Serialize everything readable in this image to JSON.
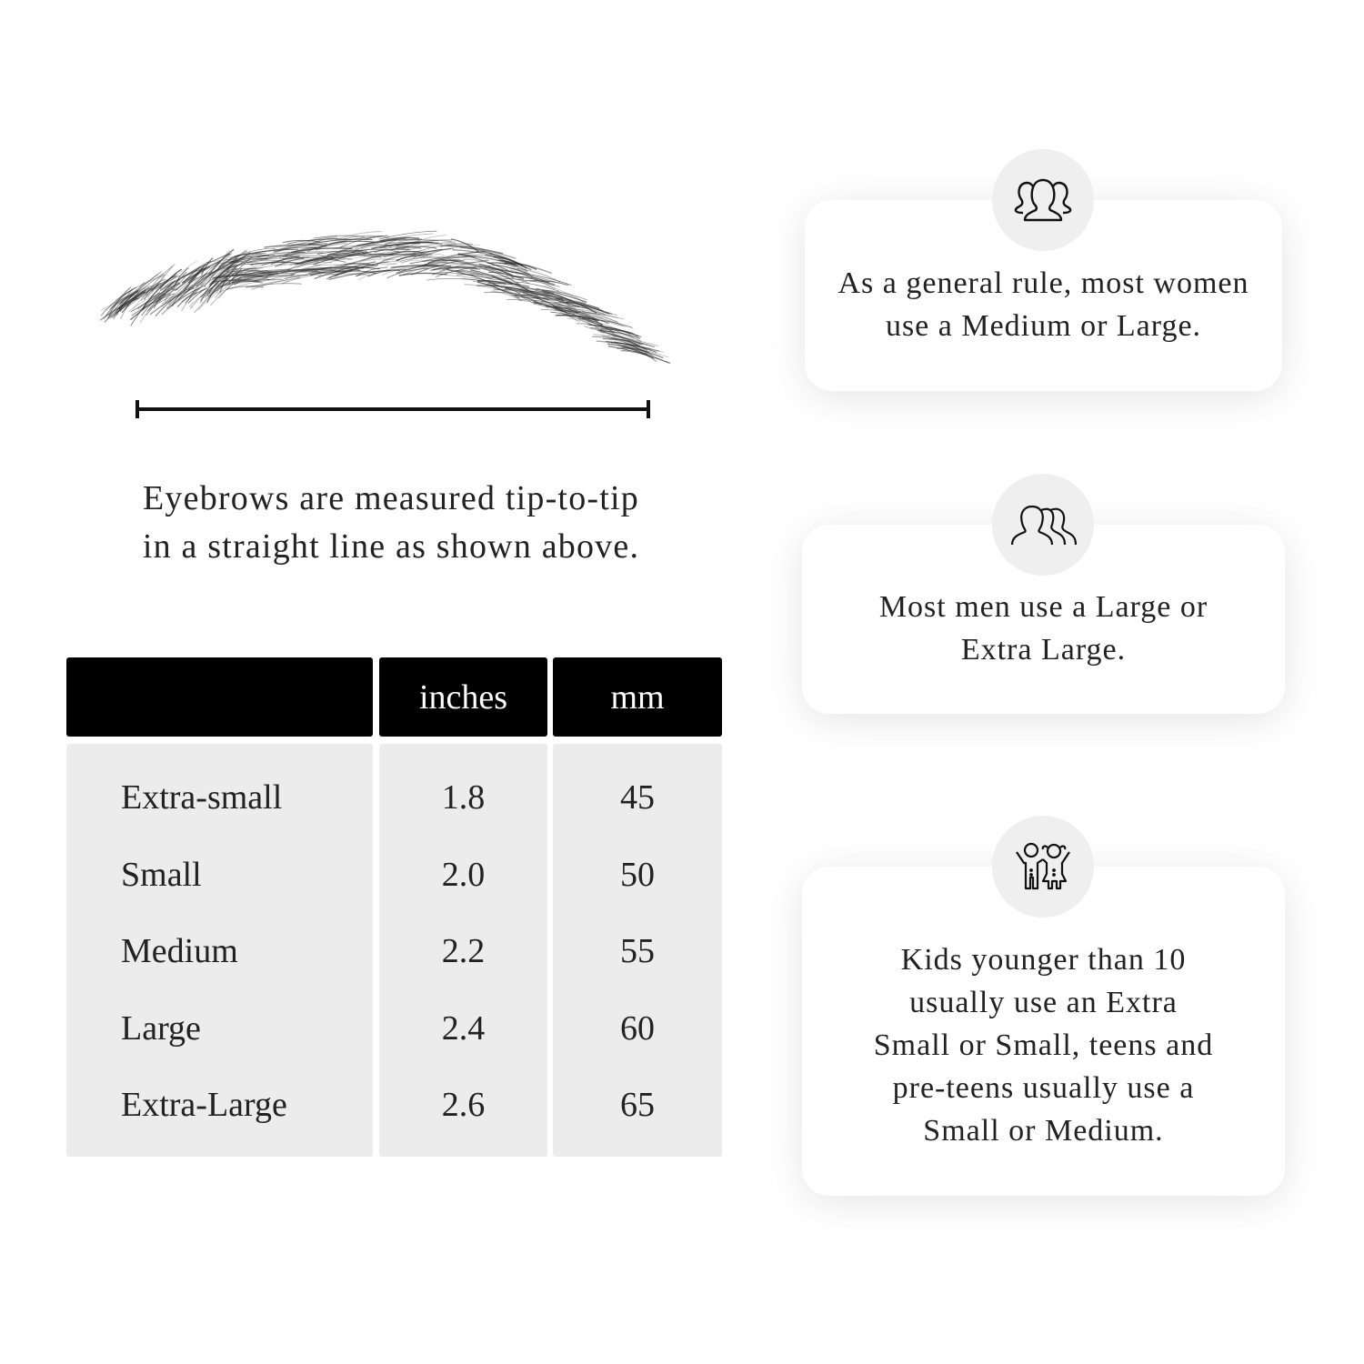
{
  "measurement": {
    "caption_line1": "Eyebrows are measured tip-to-tip",
    "caption_line2": "in a straight line as shown above."
  },
  "size_table": {
    "headers": [
      "",
      "inches",
      "mm"
    ],
    "rows": [
      {
        "size": "Extra-small",
        "inches": "1.8",
        "mm": "45"
      },
      {
        "size": "Small",
        "inches": "2.0",
        "mm": "50"
      },
      {
        "size": "Medium",
        "inches": "2.2",
        "mm": "55"
      },
      {
        "size": "Large",
        "inches": "2.4",
        "mm": "60"
      },
      {
        "size": "Extra-Large",
        "inches": "2.6",
        "mm": "65"
      }
    ]
  },
  "cards": [
    {
      "icon": "women-group-icon",
      "line1": "As a general rule, most women",
      "line2": "use a Medium or Large."
    },
    {
      "icon": "men-group-icon",
      "line1": "Most men use a Large or",
      "line2": "Extra Large."
    },
    {
      "icon": "kids-icon",
      "line1": "Kids younger than 10",
      "line2": "usually use an Extra",
      "line3": "Small or Small, teens and",
      "line4": "pre-teens usually use a",
      "line5": "Small or Medium."
    }
  ],
  "colors": {
    "header_bg": "#000000",
    "cell_bg": "#ececec",
    "icon_circle": "#efefef"
  }
}
